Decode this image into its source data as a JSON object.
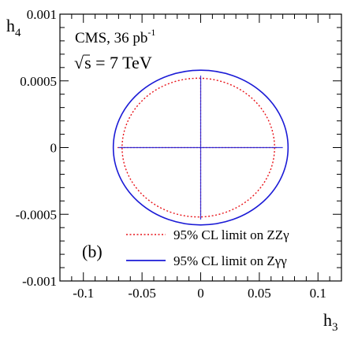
{
  "chart_data": {
    "type": "line",
    "title": "",
    "xlabel": "h3",
    "ylabel": "h4",
    "xlim": [
      -0.12,
      0.12
    ],
    "ylim": [
      -0.001,
      0.001
    ],
    "x_ticks": [
      -0.1,
      -0.05,
      0,
      0.05,
      0.1
    ],
    "x_tick_labels": [
      "-0.1",
      "-0.05",
      "0",
      "0.05",
      "0.1"
    ],
    "y_ticks": [
      -0.001,
      -0.0005,
      0,
      0.0005,
      0.001
    ],
    "y_tick_labels": [
      "-0.001",
      "-0.0005",
      "0",
      "0.0005",
      "0.001"
    ],
    "grid": false,
    "legend_position": "bottom-right",
    "annotations": {
      "experiment": "CMS, 36 pb",
      "lumi_exponent": "-1",
      "energy_sqrt": "√",
      "energy": "s = 7 TeV",
      "panel": "(b)"
    },
    "series": [
      {
        "name": "95% CL limit on ZZγ",
        "style": "dotted",
        "color": "#e8141a",
        "ellipse": {
          "center": [
            -0.002,
            0.0
          ],
          "semi_axis_h3": 0.065,
          "semi_axis_h4": 0.00052
        },
        "one_dim_limits": {
          "h3": [
            -0.071,
            0.066
          ],
          "h4": [
            -0.00053,
            0.00052
          ]
        }
      },
      {
        "name": "95% CL limit on Zγγ",
        "style": "solid",
        "color": "#1a1ad6",
        "ellipse": {
          "center": [
            0.0,
            0.0
          ],
          "semi_axis_h3": 0.0745,
          "semi_axis_h4": 0.00058
        },
        "one_dim_limits": {
          "h3": [
            -0.07,
            0.07
          ],
          "h4": [
            -0.00054,
            0.00054
          ]
        }
      }
    ]
  }
}
